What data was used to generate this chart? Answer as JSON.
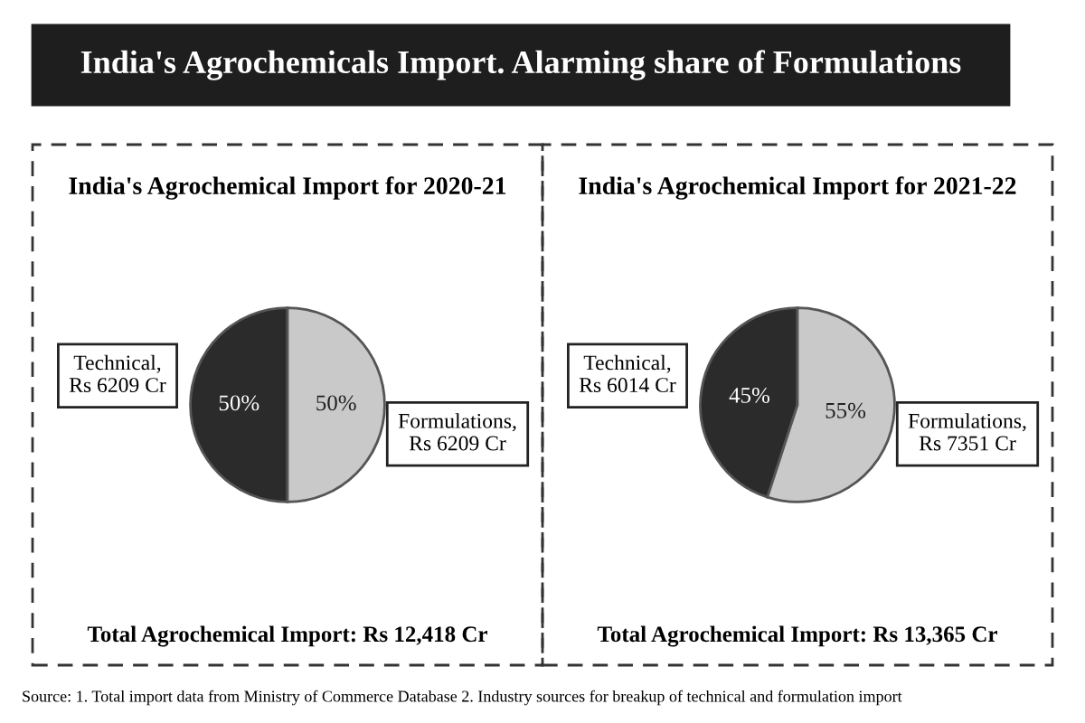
{
  "chart_data": [
    {
      "type": "pie",
      "title": "India's Agrochemical Import for 2020-21",
      "categories": [
        "Technical,\nRs 6209 Cr",
        "Formulations,\nRs 6209 Cr"
      ],
      "values": [
        50,
        50
      ],
      "value_labels": [
        "50%",
        "50%"
      ],
      "colors": [
        "#2b2b2b",
        "#c9c9c9"
      ],
      "annotations": [
        "India's Agrochemicals Import. Alarming share of Formulations",
        "Total Agrochemical Import: Rs 12,418 Cr"
      ]
    },
    {
      "type": "pie",
      "title": "India's Agrochemical Import for 2021-22",
      "categories": [
        "Technical,\nRs 6014 Cr",
        "Formulations,\nRs 7351 Cr"
      ],
      "values": [
        45,
        55
      ],
      "value_labels": [
        "45%",
        "55%"
      ],
      "colors": [
        "#2b2b2b",
        "#c9c9c9"
      ],
      "annotations": [
        "Total Agrochemical Import: Rs 13,365 Cr",
        "Source: 1. Total import data from Ministry of Commerce Database 2. Industry sources for breakup of technical and formulation import"
      ]
    }
  ]
}
